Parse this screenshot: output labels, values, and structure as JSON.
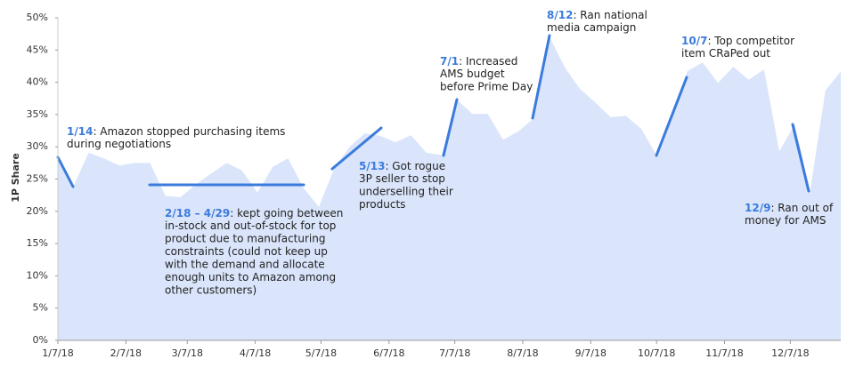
{
  "chart_data": {
    "type": "area",
    "y_label": "1P Share",
    "color": "#dae5fb",
    "annotation_color": "#3a7bdc",
    "x": [
      "1/7/18",
      "1/14/18",
      "1/21/18",
      "1/28/18",
      "2/4/18",
      "2/11/18",
      "2/18/18",
      "2/25/18",
      "3/4/18",
      "3/11/18",
      "3/18/18",
      "3/25/18",
      "4/1/18",
      "4/8/18",
      "4/15/18",
      "4/22/18",
      "4/29/18",
      "5/6/18",
      "5/13/18",
      "5/20/18",
      "5/27/18",
      "6/3/18",
      "6/10/18",
      "6/17/18",
      "6/24/18",
      "7/1/18",
      "7/8/18",
      "7/15/18",
      "7/22/18",
      "7/29/18",
      "8/5/18",
      "8/12/18",
      "8/19/18",
      "8/26/18",
      "9/2/18",
      "9/9/18",
      "9/16/18",
      "9/23/18",
      "9/30/18",
      "10/7/18",
      "10/14/18",
      "10/21/18",
      "10/28/18",
      "11/4/18",
      "11/11/18",
      "11/18/18",
      "11/25/18",
      "12/2/18",
      "12/9/18",
      "12/16/18",
      "12/23/18",
      "12/30/18"
    ],
    "values": [
      28.4,
      23.8,
      29.1,
      28.2,
      27.1,
      27.5,
      27.5,
      22.4,
      22.2,
      24.2,
      25.9,
      27.5,
      26.3,
      22.9,
      26.9,
      28.2,
      23.6,
      20.7,
      26.6,
      30.0,
      32.1,
      31.7,
      30.7,
      31.8,
      29.1,
      28.7,
      37.3,
      35.1,
      35.1,
      31.1,
      32.4,
      34.4,
      47.2,
      42.4,
      39.0,
      36.9,
      34.6,
      34.8,
      32.8,
      28.7,
      34.8,
      41.7,
      43.1,
      39.9,
      42.4,
      40.4,
      42.0,
      29.3,
      33.5,
      23.1,
      38.7,
      41.7
    ],
    "xlim": [
      "1/7/18",
      "12/30/18"
    ],
    "xticks": [
      "1/7/18",
      "2/7/18",
      "3/7/18",
      "4/7/18",
      "5/7/18",
      "6/7/18",
      "7/7/18",
      "8/7/18",
      "9/7/18",
      "10/7/18",
      "11/7/18",
      "12/7/18"
    ],
    "ylim": [
      0,
      50
    ],
    "yticks": [
      {
        "value": 0,
        "label": "0%"
      },
      {
        "value": 5,
        "label": "5%"
      },
      {
        "value": 10,
        "label": "10%"
      },
      {
        "value": 15,
        "label": "15%"
      },
      {
        "value": 20,
        "label": "20%"
      },
      {
        "value": 25,
        "label": "25%"
      },
      {
        "value": 30,
        "label": "30%"
      },
      {
        "value": 35,
        "label": "35%"
      },
      {
        "value": 40,
        "label": "40%"
      },
      {
        "value": 45,
        "label": "45%"
      },
      {
        "value": 50,
        "label": "50%"
      }
    ],
    "annotations": [
      {
        "label": "1/14",
        "lines": [
          ": Amazon stopped purchasing items",
          "during negotiations"
        ]
      },
      {
        "label": "2/18 – 4/29",
        "lines": [
          ": kept going between",
          "in-stock and out-of-stock for top",
          "product due to manufacturing",
          "constraints (could not keep up",
          "with the demand and allocate",
          "enough units to Amazon among",
          "other customers)"
        ]
      },
      {
        "label": "5/13",
        "lines": [
          ": Got rogue",
          "3P seller to stop",
          "underselling their",
          "products"
        ]
      },
      {
        "label": "7/1",
        "lines": [
          ": Increased",
          "AMS budget",
          "before Prime Day"
        ]
      },
      {
        "label": "8/12",
        "lines": [
          ": Ran national",
          "media campaign"
        ]
      },
      {
        "label": "10/7",
        "lines": [
          ": Top competitor",
          "item CRaPed out"
        ]
      },
      {
        "label": "12/9",
        "lines": [
          ": Ran out of",
          "money for AMS"
        ]
      }
    ]
  }
}
